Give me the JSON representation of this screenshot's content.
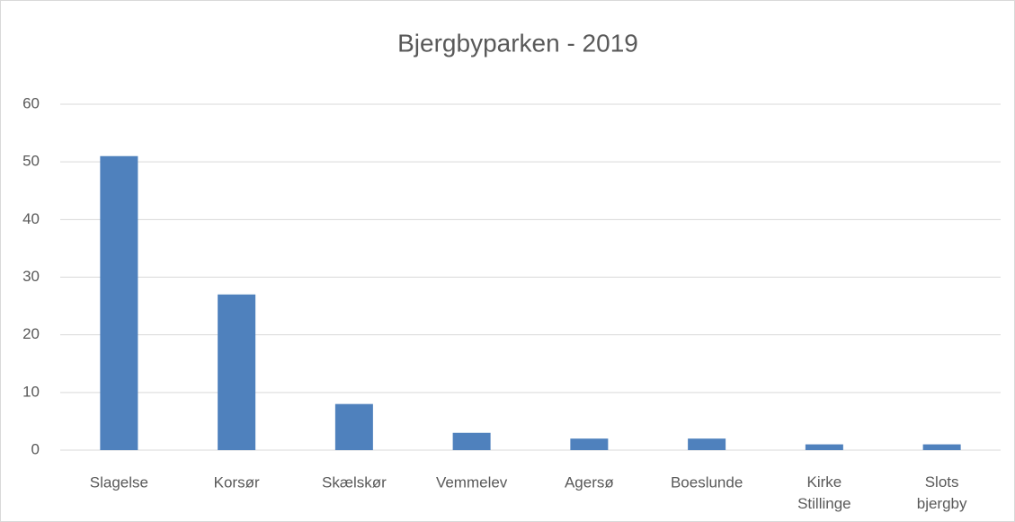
{
  "chart_data": {
    "type": "bar",
    "title": "Bjergbyparken - 2019",
    "categories": [
      "Slagelse",
      "Korsør",
      "Skælskør",
      "Vemmelev",
      "Agersø",
      "Boeslunde",
      "Kirke Stillinge",
      "Slots bjergby"
    ],
    "values": [
      51,
      27,
      8,
      3,
      2,
      2,
      1,
      1
    ],
    "color": "#4f81bd",
    "ylim": [
      0,
      60
    ],
    "yticks": [
      0,
      10,
      20,
      30,
      40,
      50,
      60
    ],
    "grid": true
  }
}
